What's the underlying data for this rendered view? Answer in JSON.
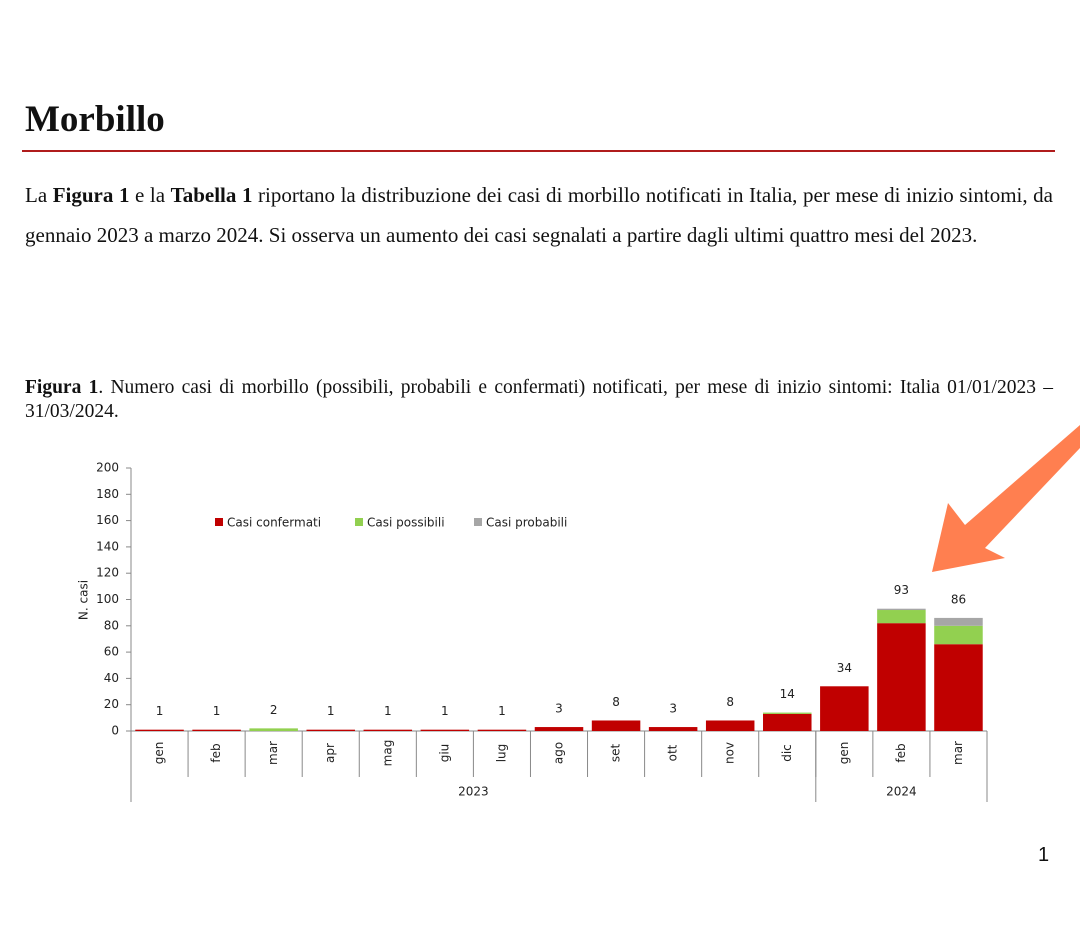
{
  "heading": "Morbillo",
  "paragraph": [
    "La ",
    "Figura 1",
    " e la ",
    "Tabella 1",
    " riportano la distribuzione dei casi di morbillo notificati in Italia, per mese di inizio sintomi, da gennaio 2023 a marzo 2024. Si osserva un aumento dei casi segnalati a partire dagli ultimi quattro mesi del 2023."
  ],
  "caption": [
    "Figura 1",
    ". Numero casi di morbillo (possibili, probabili e confermati) notificati, per mese di inizio sintomi: Italia 01/01/2023 – 31/03/2024."
  ],
  "chart_data": {
    "type": "stacked_bar",
    "y_label": "N. casi",
    "groups": [
      {
        "label": "2023",
        "categories": [
          "gen",
          "feb",
          "mar",
          "apr",
          "mag",
          "giu",
          "lug",
          "ago",
          "set",
          "ott",
          "nov",
          "dic"
        ]
      },
      {
        "label": "2024",
        "categories": [
          "gen",
          "feb",
          "mar"
        ]
      }
    ],
    "series": [
      {
        "name": "Casi confermati",
        "color": "#c00000",
        "values": [
          1,
          1,
          0,
          1,
          1,
          1,
          1,
          3,
          8,
          3,
          8,
          13,
          34,
          82,
          66
        ]
      },
      {
        "name": "Casi possibili",
        "color": "#92d050",
        "values": [
          0,
          0,
          2,
          0,
          0,
          0,
          0,
          0,
          0,
          0,
          0,
          1,
          0,
          10,
          14
        ]
      },
      {
        "name": "Casi probabili",
        "color": "#a6a6a6",
        "values": [
          0,
          0,
          0,
          0,
          0,
          0,
          0,
          0,
          0,
          0,
          0,
          0,
          0,
          1,
          6
        ]
      }
    ],
    "totals": [
      1,
      1,
      2,
      1,
      1,
      1,
      1,
      3,
      8,
      3,
      8,
      14,
      34,
      93,
      86
    ],
    "ylim": [
      0,
      200
    ],
    "yticks": [
      0,
      20,
      40,
      60,
      80,
      100,
      120,
      140,
      160,
      180,
      200
    ]
  },
  "page_number": "1"
}
